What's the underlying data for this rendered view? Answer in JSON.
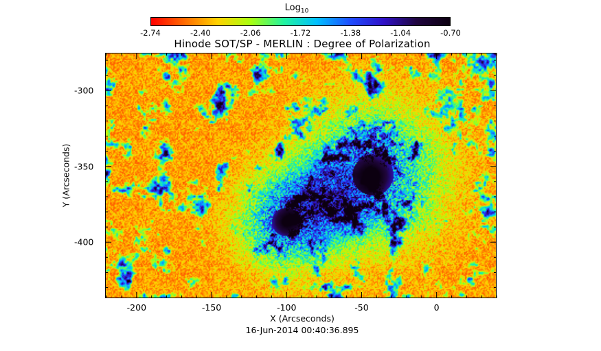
{
  "colorbar": {
    "title": "Log",
    "title_subscript": "10",
    "ticks": [
      "-2.74",
      "-2.40",
      "-2.06",
      "-1.72",
      "-1.38",
      "-1.04",
      "-0.70"
    ],
    "range": [
      -2.74,
      -0.7
    ],
    "colors": [
      "#ff0000",
      "#ff6a00",
      "#ffd200",
      "#a8ff10",
      "#22f4a0",
      "#00bfff",
      "#1f4dff",
      "#3011c8",
      "#20063f",
      "#0c0010"
    ]
  },
  "plot": {
    "title": "Hinode SOT/SP - MERLIN : Degree of Polarization",
    "xlabel": "X (Arcseconds)",
    "ylabel": "Y (Arcseconds)",
    "x_ticks": [
      "-200",
      "-150",
      "-100",
      "-50",
      "0"
    ],
    "y_ticks": [
      "-300",
      "-350",
      "-400"
    ],
    "xlim": [
      -221,
      40
    ],
    "ylim": [
      -437,
      -275
    ],
    "timestamp": "16-Jun-2014 00:40:36.895",
    "features": {
      "sunspots": [
        {
          "name": "leading sunspot",
          "x": -43,
          "y": -355,
          "radius_arcsec": 13
        },
        {
          "name": "following sunspot",
          "x": -101,
          "y": -386,
          "radius_arcsec": 9
        }
      ]
    }
  }
}
